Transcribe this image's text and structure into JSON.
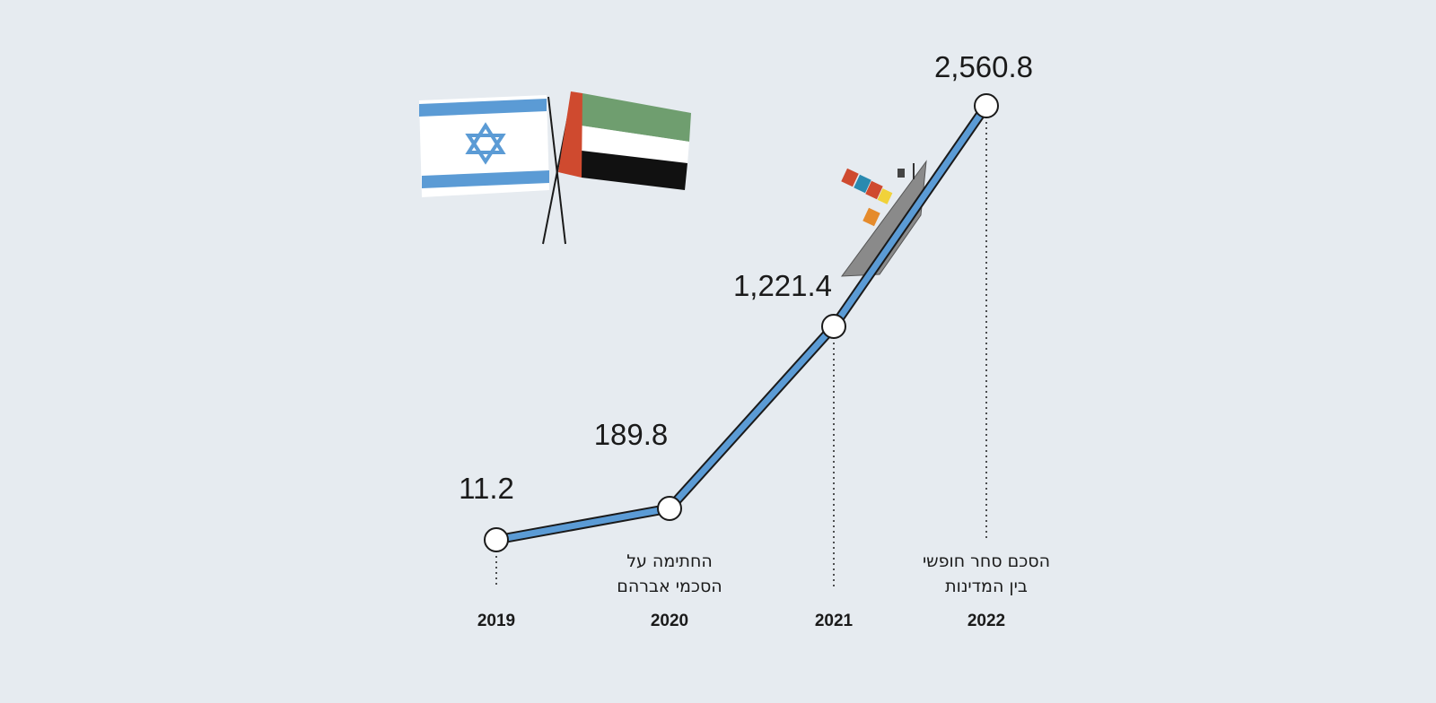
{
  "colors": {
    "background": "#e6ebf0",
    "line": "#5b9bd5",
    "line_outline": "#1a1a1a",
    "marker_fill": "#ffffff",
    "israel_blue": "#5b9bd5",
    "uae_red": "#cf4a2f",
    "uae_green": "#6f9e6f",
    "uae_black": "#111111",
    "ship_hull": "#888888"
  },
  "illustrations": {
    "flags": [
      "israel-flag",
      "uae-flag"
    ],
    "ship": "container-ship-icon"
  },
  "chart_data": {
    "type": "line",
    "categories": [
      "2019",
      "2020",
      "2021",
      "2022"
    ],
    "series": [
      {
        "values": [
          11.2,
          189.8,
          1221.4,
          2560.8
        ]
      }
    ],
    "value_labels": [
      "11.2",
      "189.8",
      "1,221.4",
      "2,560.8"
    ],
    "annotations": [
      {
        "category": "2020",
        "lines": [
          "החתימה על",
          "הסכמי אברהם"
        ]
      },
      {
        "category": "2022",
        "lines": [
          "הסכם סחר חופשי",
          "בין המדינות"
        ]
      }
    ],
    "title": "",
    "xlabel": "",
    "ylabel": "",
    "grid": false
  }
}
